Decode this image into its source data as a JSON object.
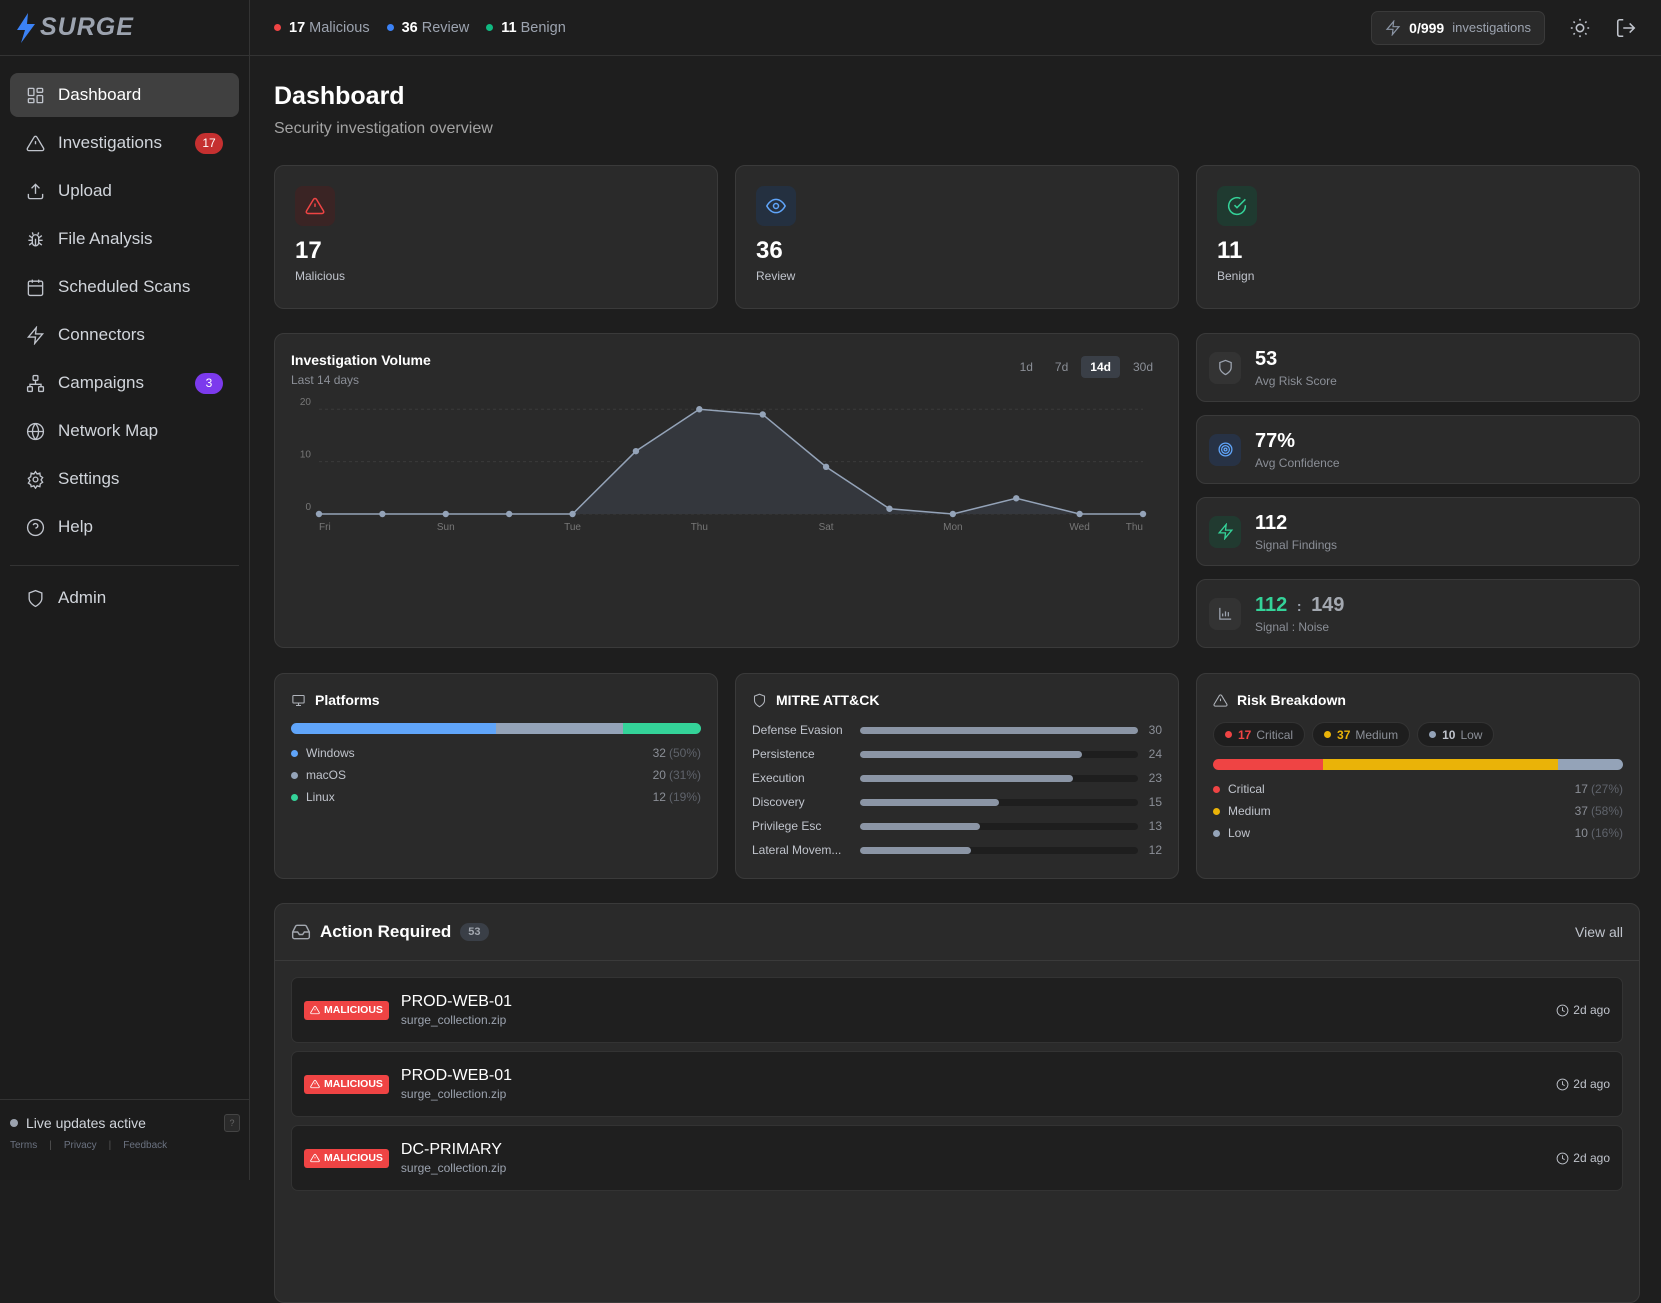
{
  "app": {
    "logo": "SURGE"
  },
  "topbar": {
    "stats": [
      {
        "count": "17",
        "label": "Malicious",
        "color": "#ef4444"
      },
      {
        "count": "36",
        "label": "Review",
        "color": "#3b82f6"
      },
      {
        "count": "11",
        "label": "Benign",
        "color": "#10b981"
      }
    ],
    "investigations_count": "0/999",
    "investigations_label": "investigations"
  },
  "sidebar": {
    "items": [
      {
        "label": "Dashboard",
        "icon": "dashboard-icon",
        "active": true
      },
      {
        "label": "Investigations",
        "icon": "alert-triangle-icon",
        "badge": "17",
        "badge_color": "#c53030"
      },
      {
        "label": "Upload",
        "icon": "upload-icon"
      },
      {
        "label": "File Analysis",
        "icon": "bug-icon"
      },
      {
        "label": "Scheduled Scans",
        "icon": "calendar-icon"
      },
      {
        "label": "Connectors",
        "icon": "zap-icon"
      },
      {
        "label": "Campaigns",
        "icon": "network-icon",
        "badge": "3",
        "badge_color": "#7c3aed"
      },
      {
        "label": "Network Map",
        "icon": "globe-icon"
      },
      {
        "label": "Settings",
        "icon": "gear-icon"
      },
      {
        "label": "Help",
        "icon": "help-icon"
      }
    ],
    "admin": "Admin",
    "live": "Live updates active",
    "help_btn": "?",
    "links": [
      "Terms",
      "Privacy",
      "Feedback"
    ]
  },
  "page": {
    "title": "Dashboard",
    "subtitle": "Security investigation overview"
  },
  "stats": [
    {
      "value": "17",
      "label": "Malicious",
      "color": "#ef4444"
    },
    {
      "value": "36",
      "label": "Review",
      "color": "#60a5fa"
    },
    {
      "value": "11",
      "label": "Benign",
      "color": "#34d399"
    }
  ],
  "metrics": {
    "risk": {
      "value": "53",
      "label": "Avg Risk Score"
    },
    "confidence": {
      "value": "77%",
      "label": "Avg Confidence"
    },
    "signal": {
      "value": "112",
      "label": "Signal Findings"
    },
    "ratio": {
      "signal": "112",
      "sep": ":",
      "noise": "149",
      "label": "Signal : Noise"
    }
  },
  "chart_data": {
    "type": "area",
    "title": "Investigation Volume",
    "subtitle": "Last 14 days",
    "ranges": [
      "1d",
      "7d",
      "14d",
      "30d"
    ],
    "selected_range": "14d",
    "x": [
      "Fri",
      "Sat",
      "Sun",
      "Mon",
      "Tue",
      "Wed",
      "Thu",
      "Fri",
      "Sat",
      "Sun",
      "Mon",
      "Tue",
      "Wed",
      "Thu"
    ],
    "tick_labels": [
      "Fri",
      "Sun",
      "Tue",
      "Thu",
      "Sat",
      "Mon",
      "Wed",
      "Thu"
    ],
    "values": [
      0,
      0,
      0,
      0,
      0,
      12,
      20,
      19,
      9,
      1,
      0,
      3,
      0,
      0
    ],
    "yticks": [
      0,
      10,
      20
    ],
    "ylim": [
      0,
      21
    ],
    "grid": true,
    "color": "#94a3b8"
  },
  "platforms": {
    "title": "Platforms",
    "items": [
      {
        "name": "Windows",
        "count": "32",
        "pct": "(50%)",
        "value": 50,
        "color": "#60a5fa"
      },
      {
        "name": "macOS",
        "count": "20",
        "pct": "(31%)",
        "value": 31,
        "color": "#94a3b8"
      },
      {
        "name": "Linux",
        "count": "12",
        "pct": "(19%)",
        "value": 19,
        "color": "#34d399"
      }
    ]
  },
  "mitre": {
    "title": "MITRE ATT&CK",
    "max": 30,
    "items": [
      {
        "name": "Defense Evasion",
        "value": "30"
      },
      {
        "name": "Persistence",
        "value": "24"
      },
      {
        "name": "Execution",
        "value": "23"
      },
      {
        "name": "Discovery",
        "value": "15"
      },
      {
        "name": "Privilege Esc",
        "value": "13"
      },
      {
        "name": "Lateral Movem...",
        "value": "12"
      }
    ]
  },
  "risk": {
    "title": "Risk Breakdown",
    "items": [
      {
        "name": "Critical",
        "count": "17",
        "pct": "(27%)",
        "value": 27,
        "color": "#ef4444"
      },
      {
        "name": "Medium",
        "count": "37",
        "pct": "(58%)",
        "value": 58,
        "color": "#eab308"
      },
      {
        "name": "Low",
        "count": "10",
        "pct": "(16%)",
        "value": 16,
        "color": "#94a3b8"
      }
    ]
  },
  "actions": {
    "title": "Action Required",
    "count": "53",
    "view_all": "View all",
    "rows": [
      {
        "badge": "MALICIOUS",
        "host": "PROD-WEB-01",
        "file": "surge_collection.zip",
        "time": "2d ago"
      },
      {
        "badge": "MALICIOUS",
        "host": "PROD-WEB-01",
        "file": "surge_collection.zip",
        "time": "2d ago"
      },
      {
        "badge": "MALICIOUS",
        "host": "DC-PRIMARY",
        "file": "surge_collection.zip",
        "time": "2d ago"
      }
    ]
  }
}
